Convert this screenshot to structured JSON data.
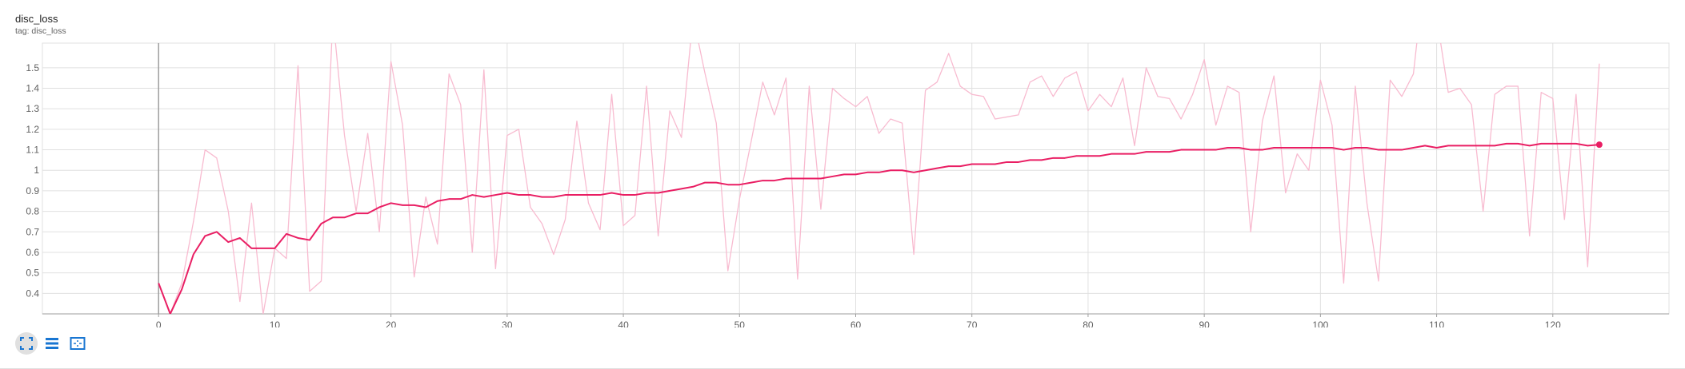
{
  "header": {
    "title": "disc_loss",
    "tag": "tag: disc_loss"
  },
  "toolbar": {
    "icons": [
      "fit-to-domain-icon",
      "toggle-log-icon",
      "toggle-selection-icon"
    ]
  },
  "colors": {
    "smoothed": "#e91e63",
    "raw": "#f8bbd0",
    "grid": "#e0e0e0",
    "axis": "#9e9e9e"
  },
  "chart_data": {
    "type": "line",
    "xlim": [
      -10,
      130
    ],
    "ylim": [
      0.3,
      1.62
    ],
    "x_ticks": [
      0,
      10,
      20,
      30,
      40,
      50,
      60,
      70,
      80,
      90,
      100,
      110,
      120
    ],
    "y_ticks": [
      0.4,
      0.5,
      0.6,
      0.7,
      0.8,
      0.9,
      1,
      1.1,
      1.2,
      1.3,
      1.4,
      1.5
    ],
    "y_tick_labels": [
      "0.4",
      "0.5",
      "0.6",
      "0.7",
      "0.8",
      "0.9",
      "1",
      "1.1",
      "1.2",
      "1.3",
      "1.4",
      "1.5"
    ],
    "grid": true,
    "x_start": 0,
    "x_step": 1,
    "series": [
      {
        "role": "raw",
        "values": [
          0.45,
          0.3,
          0.45,
          0.75,
          1.1,
          1.06,
          0.8,
          0.36,
          0.84,
          0.3,
          0.62,
          0.57,
          1.51,
          0.41,
          0.46,
          1.75,
          1.17,
          0.8,
          1.18,
          0.7,
          1.53,
          1.22,
          0.48,
          0.87,
          0.64,
          1.47,
          1.32,
          0.6,
          1.49,
          0.52,
          1.17,
          1.2,
          0.82,
          0.74,
          0.59,
          0.76,
          1.24,
          0.84,
          0.71,
          1.37,
          0.73,
          0.78,
          1.41,
          0.68,
          1.29,
          1.16,
          1.75,
          1.48,
          1.23,
          0.51,
          0.86,
          1.14,
          1.43,
          1.27,
          1.45,
          0.47,
          1.41,
          0.81,
          1.4,
          1.35,
          1.31,
          1.36,
          1.18,
          1.25,
          1.23,
          0.59,
          1.39,
          1.43,
          1.57,
          1.41,
          1.37,
          1.36,
          1.25,
          1.26,
          1.27,
          1.43,
          1.46,
          1.36,
          1.45,
          1.48,
          1.29,
          1.37,
          1.31,
          1.45,
          1.12,
          1.5,
          1.36,
          1.35,
          1.25,
          1.37,
          1.54,
          1.22,
          1.41,
          1.38,
          0.7,
          1.24,
          1.46,
          0.89,
          1.08,
          1.0,
          1.44,
          1.22,
          0.45,
          1.41,
          0.84,
          0.46,
          1.44,
          1.36,
          1.47,
          1.98,
          1.75,
          1.38,
          1.4,
          1.32,
          0.8,
          1.37,
          1.41,
          1.41,
          0.68,
          1.38,
          1.35,
          0.76,
          1.37,
          0.53,
          1.52
        ]
      },
      {
        "role": "smoothed",
        "values": [
          0.45,
          0.3,
          0.42,
          0.59,
          0.68,
          0.7,
          0.65,
          0.67,
          0.62,
          0.62,
          0.62,
          0.69,
          0.67,
          0.66,
          0.74,
          0.77,
          0.77,
          0.79,
          0.79,
          0.82,
          0.84,
          0.83,
          0.83,
          0.82,
          0.85,
          0.86,
          0.86,
          0.88,
          0.87,
          0.88,
          0.89,
          0.88,
          0.88,
          0.87,
          0.87,
          0.88,
          0.88,
          0.88,
          0.88,
          0.89,
          0.88,
          0.88,
          0.89,
          0.89,
          0.9,
          0.91,
          0.92,
          0.94,
          0.94,
          0.93,
          0.93,
          0.94,
          0.95,
          0.95,
          0.96,
          0.96,
          0.96,
          0.96,
          0.97,
          0.98,
          0.98,
          0.99,
          0.99,
          1.0,
          1.0,
          0.99,
          1.0,
          1.01,
          1.02,
          1.02,
          1.03,
          1.03,
          1.03,
          1.04,
          1.04,
          1.05,
          1.05,
          1.06,
          1.06,
          1.07,
          1.07,
          1.07,
          1.08,
          1.08,
          1.08,
          1.09,
          1.09,
          1.09,
          1.1,
          1.1,
          1.1,
          1.1,
          1.11,
          1.11,
          1.1,
          1.1,
          1.11,
          1.11,
          1.11,
          1.11,
          1.11,
          1.11,
          1.1,
          1.11,
          1.11,
          1.1,
          1.1,
          1.1,
          1.11,
          1.12,
          1.11,
          1.12,
          1.12,
          1.12,
          1.12,
          1.12,
          1.13,
          1.13,
          1.12,
          1.13,
          1.13,
          1.13,
          1.13,
          1.12,
          1.125
        ]
      }
    ]
  }
}
